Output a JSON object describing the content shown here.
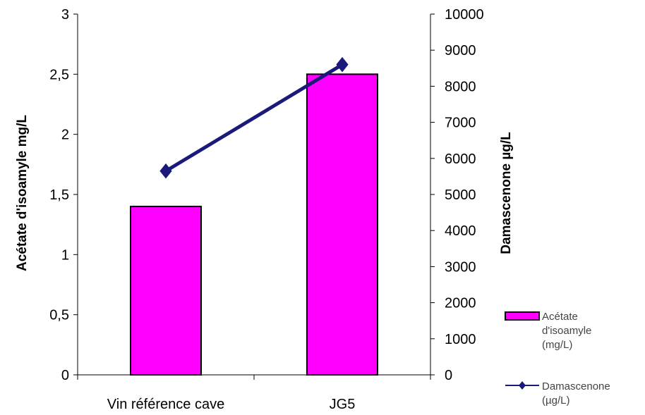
{
  "chart_data": {
    "type": "bar",
    "categories": [
      "Vin référence cave",
      "JG5"
    ],
    "series": [
      {
        "name": "Acétate d'isoamyle (mg/L)",
        "type": "bar",
        "axis": "left",
        "values": [
          1.4,
          2.5
        ],
        "color": "#ff00ff"
      },
      {
        "name": "Damascenone (µg/L)",
        "type": "line",
        "axis": "right",
        "values": [
          5650,
          8600
        ],
        "color": "#1a1a7a"
      }
    ],
    "ylabel": "Acétate d'isoamyle mg/L",
    "y2label": "Damascenone µg/L",
    "ylim": [
      0,
      3
    ],
    "y2lim": [
      0,
      10000
    ],
    "yticks": [
      "0",
      "0,5",
      "1",
      "1,5",
      "2",
      "2,5",
      "3"
    ],
    "y2ticks": [
      "0",
      "1000",
      "2000",
      "3000",
      "4000",
      "5000",
      "6000",
      "7000",
      "8000",
      "9000",
      "10000"
    ],
    "legend": {
      "position": "right",
      "entries": [
        {
          "lines": [
            "Acétate",
            "d'isoamyle",
            "(mg/L)"
          ]
        },
        {
          "lines": [
            "Damascenone",
            "(µg/L)"
          ]
        }
      ]
    },
    "grid": false
  }
}
